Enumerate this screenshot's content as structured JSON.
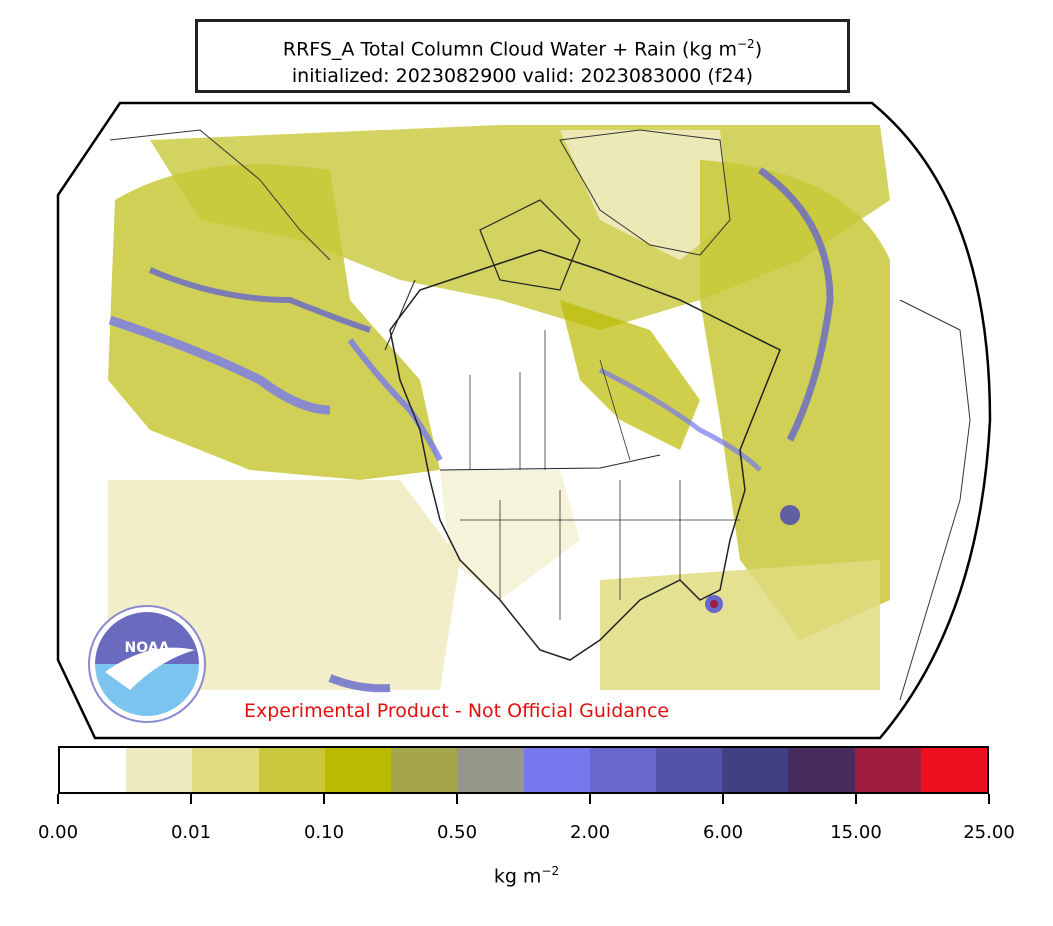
{
  "header": {
    "title_main": "RRFS_A Total Column Cloud Water + Rain (kg m",
    "title_exp": "−2",
    "title_close": ")",
    "subtitle": "initialized: 2023082900 valid: 2023083000 (f24)"
  },
  "map": {
    "projection_region": "North America",
    "logo_text": "NOAA",
    "disclaimer": "Experimental Product - Not Official Guidance"
  },
  "colorbar": {
    "colors": [
      "#ffffff",
      "#efebc0",
      "#dfdc80",
      "#c8c83a",
      "#baba00",
      "#a5a54a",
      "#969689",
      "#7878ee",
      "#6767cc",
      "#5353a8",
      "#404082",
      "#482c60",
      "#a01c40",
      "#ee1020"
    ],
    "tick_labels": [
      "0.00",
      "0.01",
      "0.10",
      "0.50",
      "2.00",
      "6.00",
      "15.00",
      "25.00"
    ],
    "units_main": "kg m",
    "units_exp": "−2"
  }
}
